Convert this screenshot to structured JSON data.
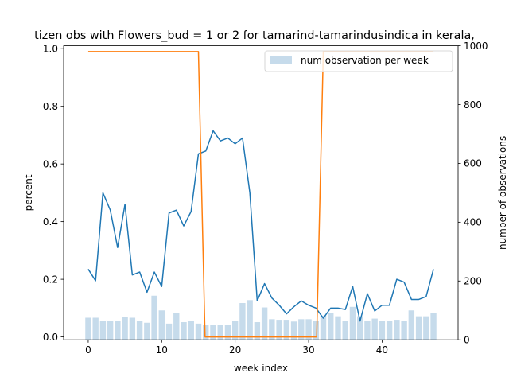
{
  "chart_data": {
    "type": "bar+line",
    "title": "tizen obs with Flowers_bud = 1 or 2 for tamarind-tamarindusindica in kerala,",
    "xlabel": "week index",
    "ylabel_left": "percent",
    "ylabel_right": "number of observations",
    "xlim": [
      -3.35,
      50.35
    ],
    "ylim_left": [
      -0.01,
      1.01
    ],
    "ylim_right": [
      0,
      1000
    ],
    "x_ticks": [
      0,
      10,
      20,
      30,
      40
    ],
    "y_left_ticks": [
      "0.0",
      "0.2",
      "0.4",
      "0.6",
      "0.8",
      "1.0"
    ],
    "y_right_ticks": [
      "0",
      "200",
      "400",
      "600",
      "800",
      "1000"
    ],
    "legend": {
      "placement": "top-right",
      "entries": [
        "num observation per week"
      ]
    },
    "colors": {
      "bars": "#c6dbeb",
      "percent_line": "#1f77b4",
      "threshold_line": "#ff7f0e"
    },
    "bars": {
      "name": "num observation per week",
      "axis": "right",
      "x": [
        0,
        1,
        2,
        3,
        4,
        5,
        6,
        7,
        8,
        9,
        10,
        11,
        12,
        13,
        14,
        15,
        16,
        17,
        18,
        19,
        20,
        21,
        22,
        23,
        24,
        25,
        26,
        27,
        28,
        29,
        30,
        31,
        32,
        33,
        34,
        35,
        36,
        37,
        38,
        39,
        40,
        41,
        42,
        43,
        44,
        45,
        46,
        47
      ],
      "values": [
        75,
        75,
        63,
        63,
        63,
        78,
        75,
        63,
        58,
        150,
        100,
        55,
        90,
        60,
        65,
        55,
        50,
        50,
        50,
        50,
        65,
        125,
        135,
        60,
        110,
        70,
        68,
        68,
        62,
        70,
        70,
        65,
        82,
        90,
        80,
        65,
        112,
        80,
        65,
        72,
        65,
        65,
        68,
        65,
        100,
        80,
        80,
        90
      ]
    },
    "series": [
      {
        "axis": "left",
        "x": [
          0,
          1,
          2,
          3,
          4,
          5,
          6,
          7,
          8,
          9,
          10,
          11,
          12,
          13,
          14,
          15,
          16,
          17,
          18,
          19,
          20,
          21,
          22,
          23,
          24,
          25,
          26,
          27,
          28,
          29,
          30,
          31,
          32,
          33,
          34,
          35,
          36,
          37,
          38,
          39,
          40,
          41,
          42,
          43,
          44,
          45,
          46,
          47
        ],
        "values": [
          0.235,
          0.195,
          0.5,
          0.44,
          0.31,
          0.46,
          0.215,
          0.225,
          0.155,
          0.225,
          0.175,
          0.43,
          0.44,
          0.385,
          0.435,
          0.635,
          0.645,
          0.715,
          0.68,
          0.69,
          0.67,
          0.69,
          0.5,
          0.125,
          0.185,
          0.135,
          0.11,
          0.08,
          0.105,
          0.125,
          0.11,
          0.1,
          0.065,
          0.1,
          0.1,
          0.095,
          0.175,
          0.055,
          0.15,
          0.09,
          0.11,
          0.11,
          0.2,
          0.19,
          0.13,
          0.13,
          0.14,
          0.235
        ]
      },
      {
        "axis": "left",
        "x": [
          0,
          15,
          15.9,
          31.1,
          32,
          47
        ],
        "values": [
          0.99,
          0.99,
          0.0,
          0.0,
          0.99,
          0.99
        ]
      }
    ]
  }
}
